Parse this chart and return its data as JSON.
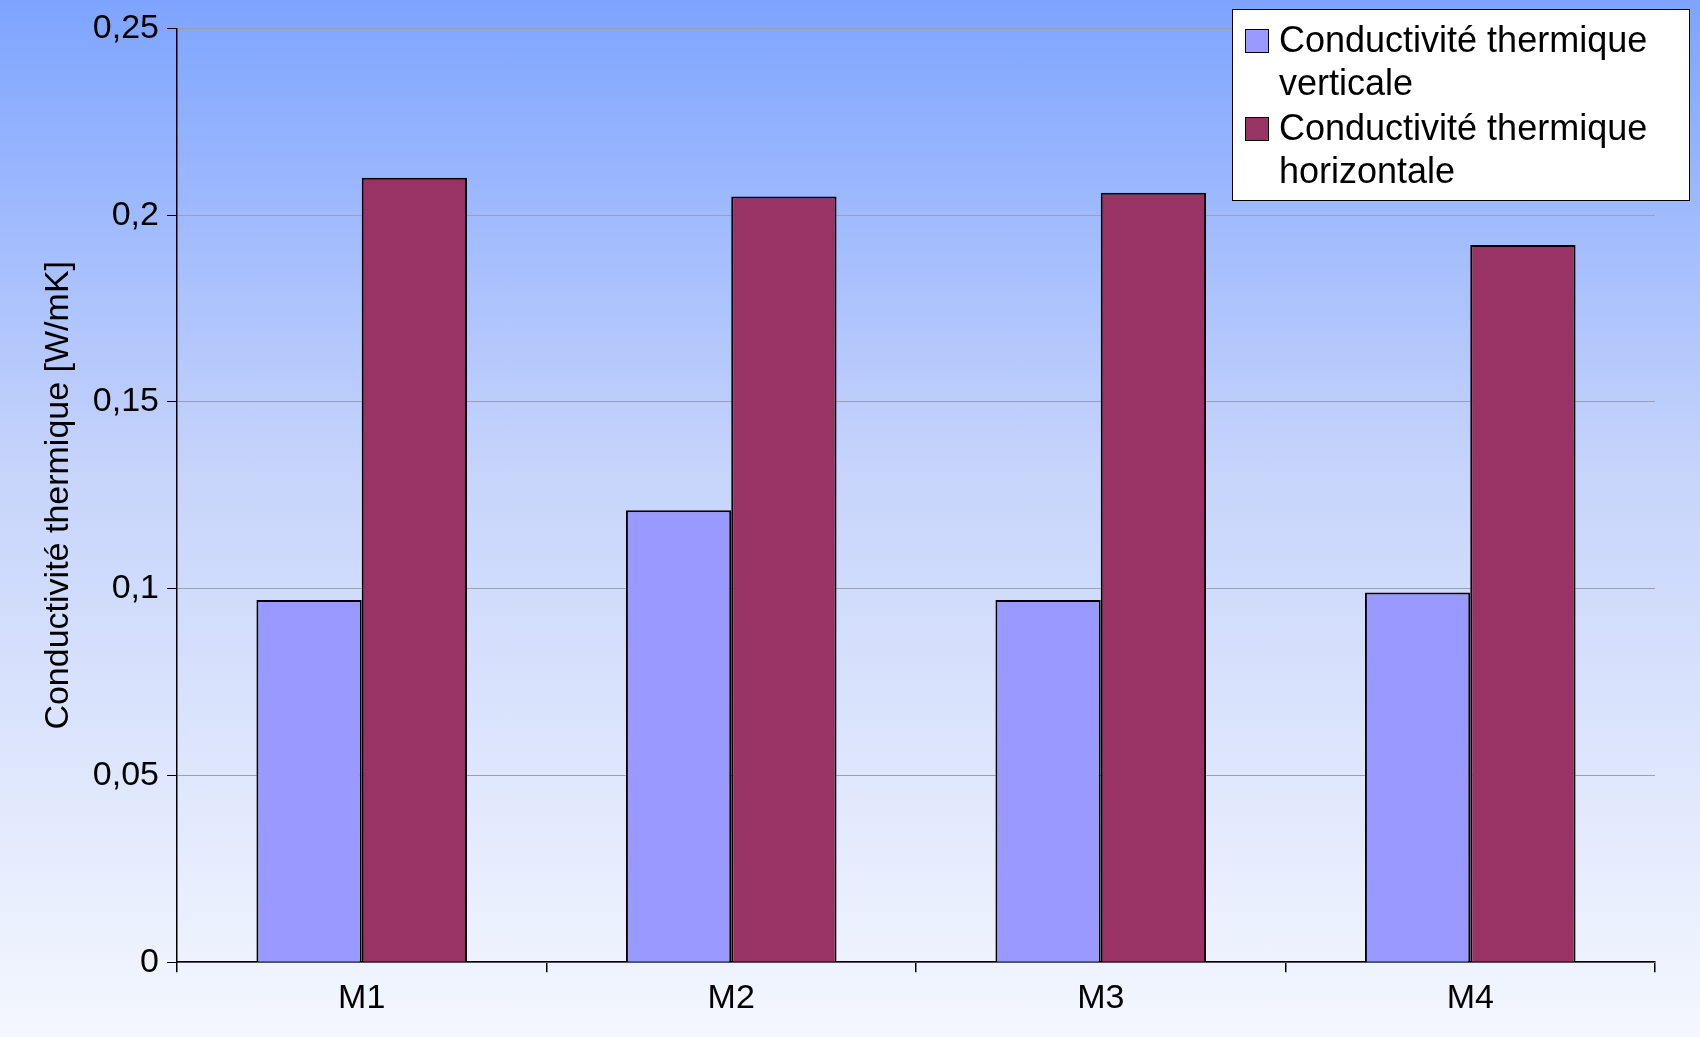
{
  "chart_data": {
    "type": "bar",
    "ylabel": "Conductivité thermique [W/mK]",
    "categories": [
      "M1",
      "M2",
      "M3",
      "M4"
    ],
    "series": [
      {
        "name": "Conductivité thermique verticale",
        "color": "#9999ff",
        "values": [
          0.097,
          0.121,
          0.097,
          0.099
        ]
      },
      {
        "name": "Conductivité thermique horizontale",
        "color": "#993366",
        "values": [
          0.21,
          0.205,
          0.206,
          0.192
        ]
      }
    ],
    "ylim": [
      0,
      0.25
    ],
    "yticks": [
      {
        "value": 0,
        "label": "0"
      },
      {
        "value": 0.05,
        "label": "0,05"
      },
      {
        "value": 0.1,
        "label": "0,1"
      },
      {
        "value": 0.15,
        "label": "0,15"
      },
      {
        "value": 0.2,
        "label": "0,2"
      },
      {
        "value": 0.25,
        "label": "0,25"
      }
    ],
    "grid": "y",
    "legend": "top right"
  }
}
